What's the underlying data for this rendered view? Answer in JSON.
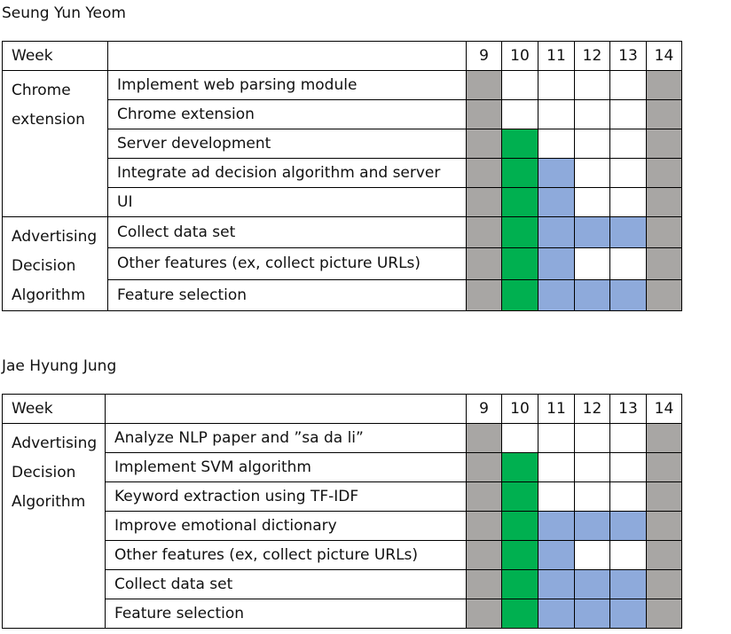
{
  "colors": {
    "gray": "#a8a6a4",
    "green": "#00b050",
    "blue": "#8eaadb",
    "white": "#ffffff"
  },
  "weeks": [
    "9",
    "10",
    "11",
    "12",
    "13",
    "14"
  ],
  "sections": [
    {
      "person": "Seung Yun Yeom",
      "week_label": "Week",
      "groups": [
        {
          "category": [
            "Chrome",
            "extension"
          ],
          "tasks": [
            {
              "label": "Implement web parsing module",
              "cells": [
                "gray",
                "white",
                "white",
                "white",
                "white",
                "gray"
              ]
            },
            {
              "label": "Chrome extension",
              "cells": [
                "gray",
                "white",
                "white",
                "white",
                "white",
                "gray"
              ]
            },
            {
              "label": "Server development",
              "cells": [
                "gray",
                "green",
                "white",
                "white",
                "white",
                "gray"
              ]
            },
            {
              "label": "Integrate ad decision algorithm and server",
              "cells": [
                "gray",
                "green",
                "blue",
                "white",
                "white",
                "gray"
              ]
            },
            {
              "label": "UI",
              "cells": [
                "gray",
                "green",
                "blue",
                "white",
                "white",
                "gray"
              ]
            }
          ]
        },
        {
          "category": [
            "Advertising",
            "Decision",
            "Algorithm"
          ],
          "tasks": [
            {
              "label": "Collect data set",
              "cells": [
                "gray",
                "green",
                "blue",
                "blue",
                "blue",
                "gray"
              ]
            },
            {
              "label": "Other features (ex, collect picture URLs)",
              "cells": [
                "gray",
                "green",
                "blue",
                "white",
                "white",
                "gray"
              ]
            },
            {
              "label": "Feature selection",
              "cells": [
                "gray",
                "green",
                "blue",
                "blue",
                "blue",
                "gray"
              ]
            }
          ]
        }
      ]
    },
    {
      "person": "Jae Hyung Jung",
      "week_label": "Week",
      "groups": [
        {
          "category": [
            "Advertising",
            "Decision",
            "Algorithm"
          ],
          "tasks": [
            {
              "label": "Analyze NLP paper and ”sa da li”",
              "cells": [
                "gray",
                "white",
                "white",
                "white",
                "white",
                "gray"
              ]
            },
            {
              "label": "Implement SVM algorithm",
              "cells": [
                "gray",
                "green",
                "white",
                "white",
                "white",
                "gray"
              ]
            },
            {
              "label": "Keyword extraction using TF-IDF",
              "cells": [
                "gray",
                "green",
                "white",
                "white",
                "white",
                "gray"
              ]
            },
            {
              "label": "Improve emotional dictionary",
              "cells": [
                "gray",
                "green",
                "blue",
                "blue",
                "blue",
                "gray"
              ]
            },
            {
              "label": "Other features (ex, collect picture URLs)",
              "cells": [
                "gray",
                "green",
                "blue",
                "white",
                "white",
                "gray"
              ]
            },
            {
              "label": "Collect data set",
              "cells": [
                "gray",
                "green",
                "blue",
                "blue",
                "blue",
                "gray"
              ]
            },
            {
              "label": "Feature selection",
              "cells": [
                "gray",
                "green",
                "blue",
                "blue",
                "blue",
                "gray"
              ]
            }
          ]
        }
      ]
    }
  ]
}
